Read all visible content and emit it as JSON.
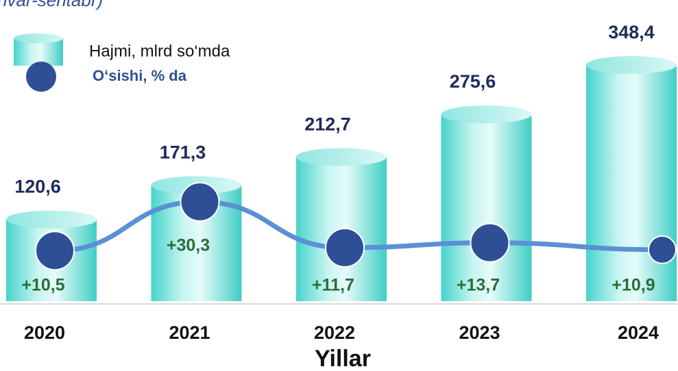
{
  "chart_data": {
    "type": "bar",
    "title": "nvar-sentabr)",
    "x_label": "Yillar",
    "categories": [
      "2020",
      "2021",
      "2022",
      "2023",
      "2024"
    ],
    "series": [
      {
        "name": "Hajmi, mlrd so‘mda",
        "color": "#5fdcd4",
        "values": [
          120.6,
          171.3,
          212.7,
          275.6,
          348.4
        ],
        "value_labels": [
          "120,6",
          "171,3",
          "212,7",
          "275,6",
          "348,4"
        ]
      },
      {
        "name": "O‘sishi, % da",
        "type": "line",
        "color": "#2e4f96",
        "line_color": "#5b8fd6",
        "values": [
          10.5,
          30.3,
          11.7,
          13.7,
          10.9
        ],
        "value_labels": [
          "+10,5",
          "+30,3",
          "+11,7",
          "+13,7",
          "+10,9"
        ]
      }
    ]
  }
}
